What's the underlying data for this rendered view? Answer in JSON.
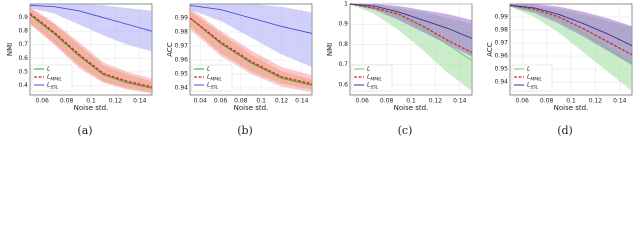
{
  "chart_data": [
    {
      "type": "line",
      "caption": "(a)",
      "xlabel": "Noise std.",
      "ylabel": "NMI",
      "legend": "lower left",
      "x": [
        0.05,
        0.07,
        0.09,
        0.11,
        0.13,
        0.15
      ],
      "xlim": [
        0.05,
        0.15
      ],
      "xticks": [
        0.06,
        0.08,
        0.1,
        0.12,
        0.14
      ],
      "ylim": [
        0.33,
        1.0
      ],
      "yticks": [
        0.4,
        0.5,
        0.6,
        0.7,
        0.8,
        0.9
      ],
      "series": [
        {
          "name": "L",
          "color": "#2ca02c",
          "band": "#e8955a",
          "values": [
            0.92,
            0.78,
            0.62,
            0.48,
            0.42,
            0.38
          ],
          "lower": [
            0.86,
            0.71,
            0.55,
            0.43,
            0.38,
            0.35
          ],
          "upper": [
            0.97,
            0.85,
            0.7,
            0.55,
            0.48,
            0.43
          ]
        },
        {
          "name": "L_MMIL",
          "color": "#d62728",
          "dashed": true,
          "band": "#f4a0a0",
          "values": [
            0.93,
            0.79,
            0.63,
            0.49,
            0.43,
            0.39
          ],
          "lower": [
            0.85,
            0.7,
            0.53,
            0.42,
            0.37,
            0.34
          ],
          "upper": [
            0.98,
            0.86,
            0.72,
            0.57,
            0.5,
            0.45
          ]
        },
        {
          "name": "L_SSL",
          "color": "#4b4bd6",
          "band": "#a9a9f5",
          "values": [
            0.99,
            0.98,
            0.95,
            0.9,
            0.85,
            0.8
          ],
          "lower": [
            0.97,
            0.93,
            0.85,
            0.77,
            0.7,
            0.65
          ],
          "upper": [
            1.0,
            1.0,
            1.0,
            0.99,
            0.97,
            0.95
          ]
        }
      ]
    },
    {
      "type": "line",
      "caption": "(b)",
      "xlabel": "Noise std.",
      "ylabel": "ACC",
      "legend": "lower left",
      "x": [
        0.03,
        0.06,
        0.09,
        0.12,
        0.15
      ],
      "xlim": [
        0.03,
        0.15
      ],
      "xticks": [
        0.04,
        0.06,
        0.08,
        0.1,
        0.12,
        0.14
      ],
      "ylim": [
        0.935,
        1.0
      ],
      "yticks": [
        0.94,
        0.95,
        0.96,
        0.97,
        0.98,
        0.99
      ],
      "series": [
        {
          "name": "L",
          "color": "#2ca02c",
          "band": "#e8955a",
          "values": [
            0.99,
            0.972,
            0.958,
            0.947,
            0.942
          ],
          "lower": [
            0.984,
            0.965,
            0.952,
            0.943,
            0.939
          ],
          "upper": [
            0.995,
            0.979,
            0.964,
            0.952,
            0.946
          ]
        },
        {
          "name": "L_MMIL",
          "color": "#d62728",
          "dashed": true,
          "band": "#f4a0a0",
          "values": [
            0.99,
            0.973,
            0.959,
            0.948,
            0.943
          ],
          "lower": [
            0.982,
            0.963,
            0.95,
            0.941,
            0.937
          ],
          "upper": [
            0.997,
            0.981,
            0.967,
            0.955,
            0.949
          ]
        },
        {
          "name": "L_SSL",
          "color": "#4b4bd6",
          "band": "#a9a9f5",
          "values": [
            0.999,
            0.996,
            0.99,
            0.984,
            0.979
          ],
          "lower": [
            0.996,
            0.988,
            0.976,
            0.964,
            0.955
          ],
          "upper": [
            1.0,
            1.0,
            1.0,
            0.998,
            0.994
          ]
        }
      ]
    },
    {
      "type": "line",
      "caption": "(c)",
      "xlabel": "Noise std.",
      "ylabel": "NMI",
      "legend": "lower left",
      "x": [
        0.05,
        0.07,
        0.09,
        0.11,
        0.13,
        0.15
      ],
      "xlim": [
        0.05,
        0.15
      ],
      "xticks": [
        0.06,
        0.08,
        0.1,
        0.12,
        0.14
      ],
      "ylim": [
        0.55,
        1.0
      ],
      "yticks": [
        0.6,
        0.7,
        0.8,
        0.9,
        1.0
      ],
      "series": [
        {
          "name": "L",
          "color": "#6cc56c",
          "band": "#9fdc9f",
          "values": [
            1.0,
            0.98,
            0.94,
            0.88,
            0.8,
            0.72
          ],
          "lower": [
            1.0,
            0.95,
            0.87,
            0.77,
            0.66,
            0.57
          ],
          "upper": [
            1.0,
            1.0,
            0.98,
            0.96,
            0.93,
            0.9
          ]
        },
        {
          "name": "L_MMIL",
          "color": "#d62728",
          "dashed": true,
          "values": [
            1.0,
            0.98,
            0.95,
            0.89,
            0.82,
            0.76
          ]
        },
        {
          "name": "L_SSL",
          "color": "#3b2b8c",
          "band": "#9a6fd0",
          "values": [
            1.0,
            0.99,
            0.96,
            0.92,
            0.88,
            0.83
          ],
          "lower": [
            1.0,
            0.97,
            0.92,
            0.86,
            0.8,
            0.74
          ],
          "upper": [
            1.0,
            1.0,
            0.99,
            0.97,
            0.95,
            0.92
          ]
        }
      ]
    },
    {
      "type": "line",
      "caption": "(d)",
      "xlabel": "Noise std.",
      "ylabel": "ACC",
      "legend": "lower left",
      "x": [
        0.05,
        0.07,
        0.09,
        0.11,
        0.13,
        0.15
      ],
      "xlim": [
        0.05,
        0.15
      ],
      "xticks": [
        0.06,
        0.08,
        0.1,
        0.12,
        0.14
      ],
      "ylim": [
        0.93,
        1.0
      ],
      "yticks": [
        0.94,
        0.95,
        0.96,
        0.97,
        0.98,
        0.99
      ],
      "series": [
        {
          "name": "L",
          "color": "#6cc56c",
          "band": "#9fdc9f",
          "values": [
            0.999,
            0.995,
            0.988,
            0.978,
            0.966,
            0.954
          ],
          "lower": [
            0.998,
            0.99,
            0.978,
            0.963,
            0.948,
            0.933
          ],
          "upper": [
            1.0,
            0.999,
            0.996,
            0.992,
            0.987,
            0.982
          ]
        },
        {
          "name": "L_MMIL",
          "color": "#d62728",
          "dashed": true,
          "values": [
            0.999,
            0.996,
            0.99,
            0.981,
            0.971,
            0.961
          ]
        },
        {
          "name": "L_SSL",
          "color": "#3b2b8c",
          "band": "#9a6fd0",
          "values": [
            0.999,
            0.997,
            0.992,
            0.985,
            0.977,
            0.968
          ],
          "lower": [
            0.998,
            0.993,
            0.985,
            0.975,
            0.964,
            0.953
          ],
          "upper": [
            1.0,
            1.0,
            0.998,
            0.994,
            0.989,
            0.983
          ]
        }
      ]
    }
  ]
}
